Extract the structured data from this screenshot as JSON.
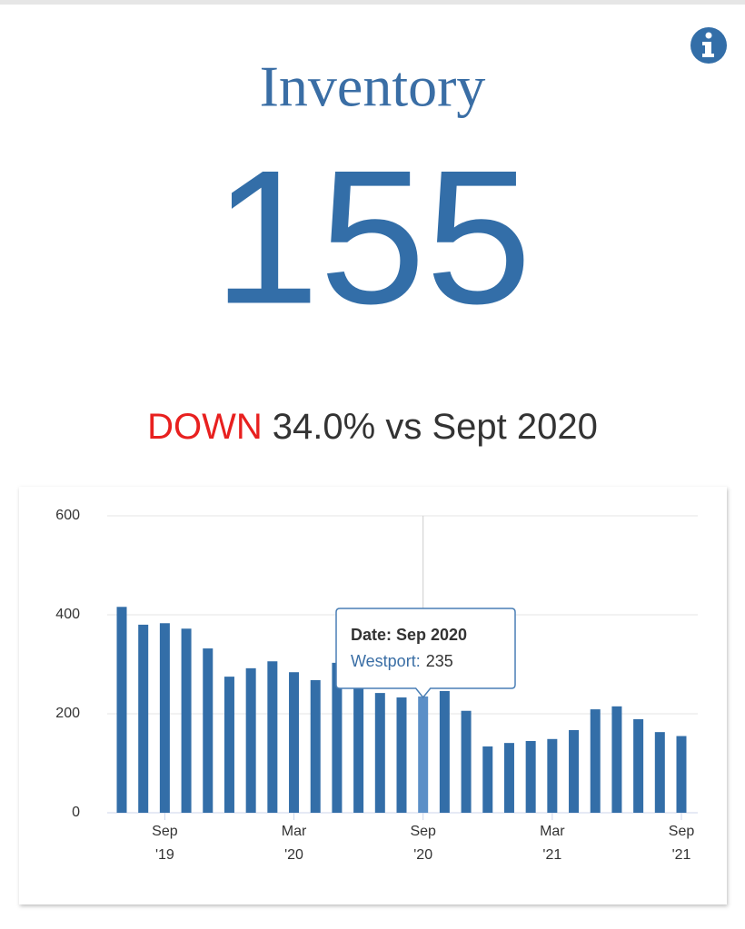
{
  "title": "Inventory",
  "value": "155",
  "change": {
    "direction": "DOWN",
    "text": "34.0% vs Sept 2020"
  },
  "chart_data": {
    "type": "bar",
    "categories": [
      null,
      null,
      "Sep '19",
      null,
      null,
      null,
      null,
      null,
      "Mar '20",
      null,
      null,
      null,
      null,
      null,
      "Sep '20",
      null,
      null,
      null,
      null,
      null,
      "Mar '21",
      null,
      null,
      null,
      null,
      null,
      "Sep '21"
    ],
    "values": [
      416,
      380,
      383,
      372,
      332,
      275,
      292,
      306,
      284,
      268,
      303,
      262,
      242,
      233,
      235,
      246,
      206,
      134,
      141,
      145,
      149,
      167,
      209,
      215,
      189,
      163,
      155
    ],
    "color": "#336ea8",
    "highlight_color": "#5b8fc7",
    "ylim": [
      0,
      600
    ],
    "yticks": [
      0,
      200,
      400,
      600
    ],
    "grid": true,
    "tooltip": {
      "title": "Date: Sep 2020",
      "series_label": "Westport:"
    }
  }
}
